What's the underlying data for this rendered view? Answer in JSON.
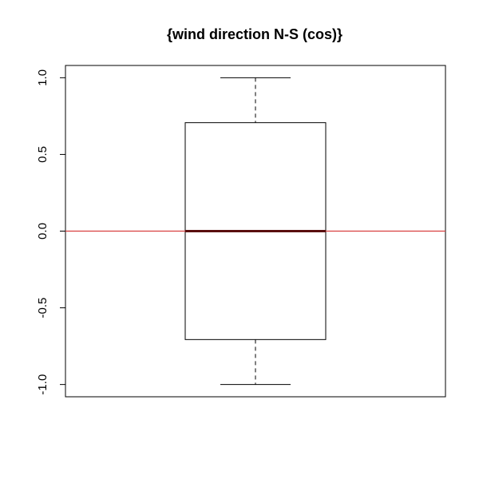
{
  "chart_data": {
    "type": "boxplot",
    "title": "{wind direction N-S (cos)}",
    "xlabel": "",
    "ylabel": "",
    "ylim": [
      -1.08,
      1.08
    ],
    "yticks": [
      -1.0,
      -0.5,
      0.0,
      0.5,
      1.0
    ],
    "ytick_labels": [
      "-1.0",
      "-0.5",
      "0.0",
      "0.5",
      "1.0"
    ],
    "box": {
      "min": -1.0,
      "q1": -0.707,
      "median": 0.0,
      "q3": 0.707,
      "max": 1.0
    },
    "reference_line": {
      "y": 0.0,
      "color": "#d94040"
    },
    "colors": {
      "median": "#5a0f0f",
      "box": "#000000"
    },
    "grid": false
  }
}
